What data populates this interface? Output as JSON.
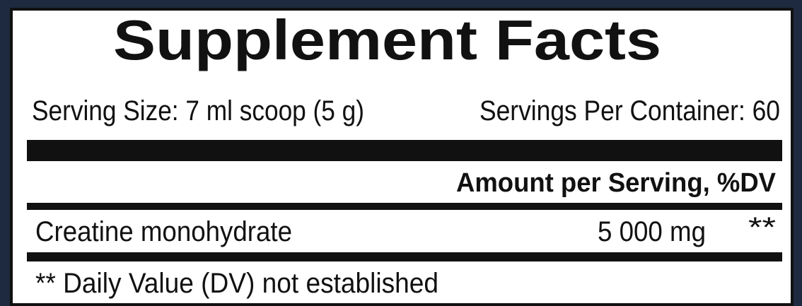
{
  "title": "Supplement Facts",
  "serving_size": "Serving Size: 7 ml scoop (5 g)",
  "servings_per_container": "Servings Per Container: 60",
  "amount_header": "Amount per Serving, %DV",
  "rows": [
    {
      "name": "Creatine monohydrate",
      "amount": "5 000 mg",
      "dv": "**"
    }
  ],
  "footnote": "** Daily Value (DV) not established"
}
